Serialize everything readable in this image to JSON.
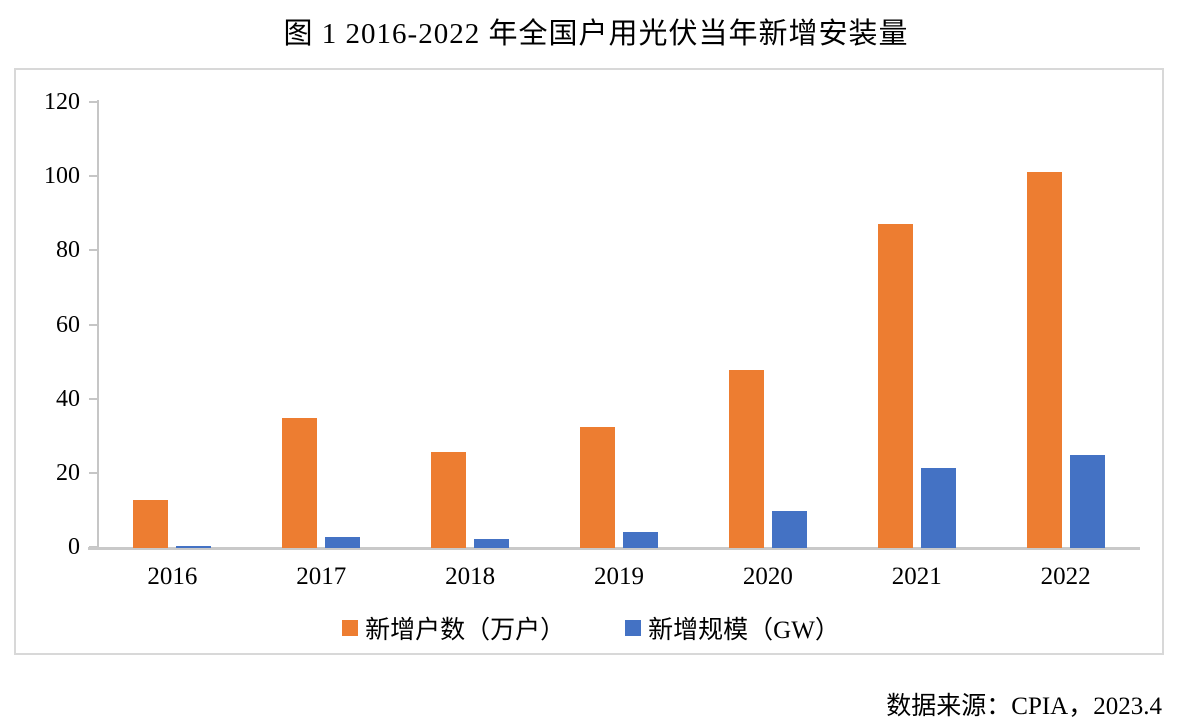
{
  "title": "图 1 2016-2022 年全国户用光伏当年新增安装量",
  "source_note": "数据来源：CPIA，2023.4",
  "chart_data": {
    "type": "bar",
    "title": "图 1 2016-2022 年全国户用光伏当年新增安装量",
    "categories": [
      "2016",
      "2017",
      "2018",
      "2019",
      "2020",
      "2021",
      "2022"
    ],
    "series": [
      {
        "name": "新增户数（万户）",
        "color": "#ED7D31",
        "values": [
          13,
          35,
          26,
          32.5,
          48,
          87.5,
          101.5
        ]
      },
      {
        "name": "新增规模（GW）",
        "color": "#4472C4",
        "values": [
          0.5,
          3,
          2.4,
          4.3,
          10,
          21.6,
          25.2
        ]
      }
    ],
    "xlabel": "",
    "ylabel": "",
    "ylim": [
      0,
      120
    ],
    "yticks": [
      0,
      20,
      40,
      60,
      80,
      100,
      120
    ],
    "grid": false,
    "legend_position": "bottom",
    "source": "数据来源：CPIA，2023.4",
    "colors": {
      "bar_households": "#ED7D31",
      "bar_scale": "#4472C4",
      "axis": "#c6c6c6",
      "frame_border": "#d8d8d8",
      "text": "#000000",
      "background": "#ffffff"
    }
  }
}
